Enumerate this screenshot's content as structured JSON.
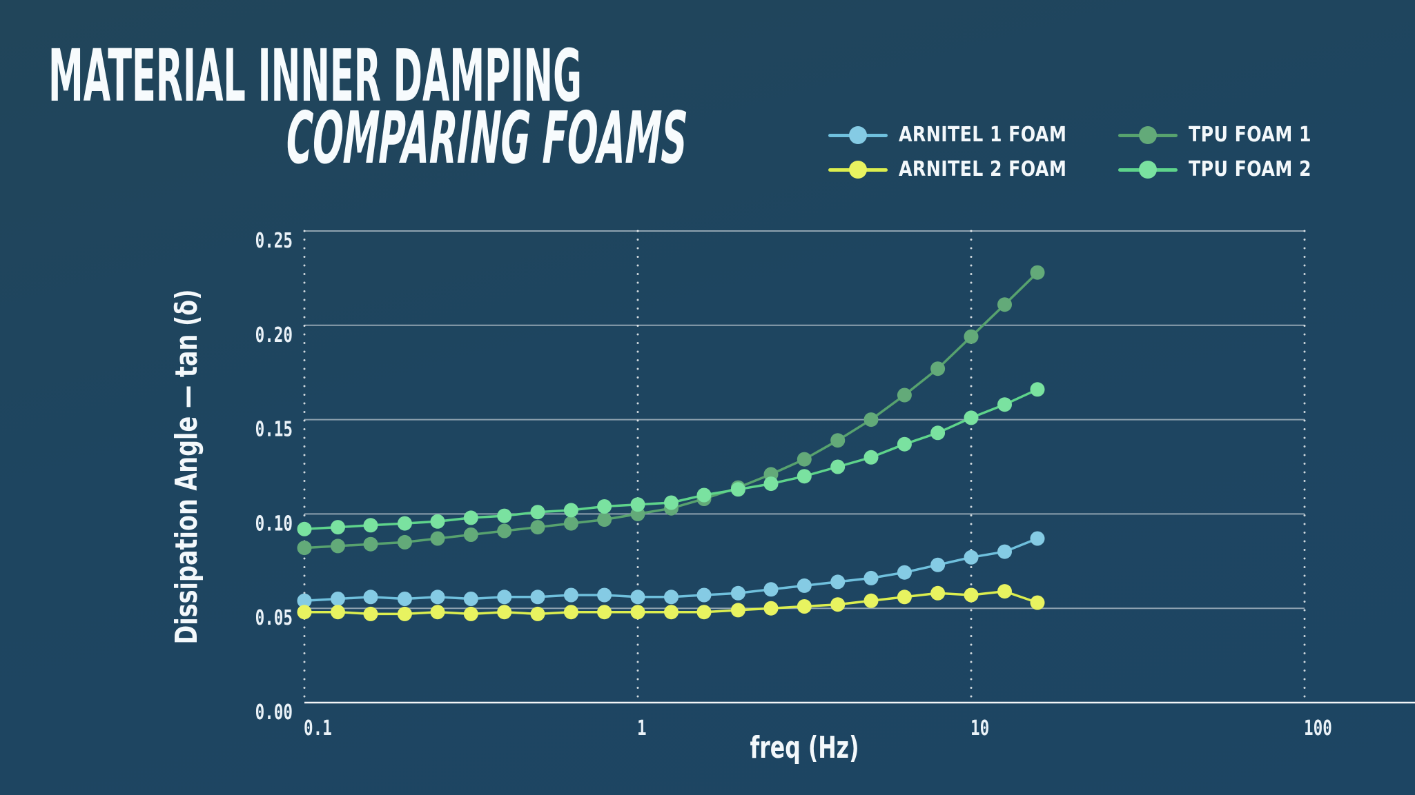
{
  "page": {
    "background": "#1d4563",
    "background_top": "#21455a"
  },
  "header": {
    "title": "MATERIAL INNER DAMPING",
    "subtitle": "COMPARING FOAMS",
    "text_color": "#f7fbfd"
  },
  "legend": {
    "position": "top-right",
    "items": [
      {
        "label": "ARNITEL 1 FOAM",
        "line_color": "#6fc0dd",
        "dot_color": "#85cbe4"
      },
      {
        "label": "ARNITEL 2 FOAM",
        "line_color": "#dcee4e",
        "dot_color": "#e8f360"
      },
      {
        "label": "TPU FOAM 1",
        "line_color": "#57a26e",
        "dot_color": "#63aa79"
      },
      {
        "label": "TPU FOAM 2",
        "line_color": "#5ed48b",
        "dot_color": "#7ae2a0"
      }
    ]
  },
  "chart_data": {
    "type": "line",
    "title": "MATERIAL INNER DAMPING",
    "subtitle": "COMPARING FOAMS",
    "xlabel": "freq (Hz)",
    "ylabel": "Dissipation Angle — tan (δ)",
    "x_scale": "log",
    "xlim": [
      0.1,
      100
    ],
    "ylim": [
      0,
      0.25
    ],
    "grid": {
      "horizontal": "solid",
      "vertical": "dotted"
    },
    "legend_position": "top-right",
    "xticks": [
      {
        "v": 0.1,
        "label": "0.1"
      },
      {
        "v": 1,
        "label": "1"
      },
      {
        "v": 10,
        "label": "10"
      },
      {
        "v": 100,
        "label": "100"
      }
    ],
    "yticks": [
      {
        "v": 0.0,
        "label": "0.00"
      },
      {
        "v": 0.05,
        "label": "0.05"
      },
      {
        "v": 0.1,
        "label": "0.10"
      },
      {
        "v": 0.15,
        "label": "0.15"
      },
      {
        "v": 0.2,
        "label": "0.20"
      },
      {
        "v": 0.25,
        "label": "0.25"
      }
    ],
    "x": [
      0.1,
      0.126,
      0.158,
      0.2,
      0.251,
      0.316,
      0.398,
      0.501,
      0.631,
      0.794,
      1.0,
      1.26,
      1.58,
      2.0,
      2.51,
      3.16,
      3.98,
      5.01,
      6.31,
      7.94,
      10.0,
      12.6,
      15.8
    ],
    "series": [
      {
        "name": "ARNITEL 1 FOAM",
        "line_color": "#6fc0dd",
        "dot_color": "#85cbe4",
        "values": [
          0.054,
          0.055,
          0.056,
          0.055,
          0.056,
          0.055,
          0.056,
          0.056,
          0.057,
          0.057,
          0.056,
          0.056,
          0.057,
          0.058,
          0.06,
          0.062,
          0.064,
          0.066,
          0.069,
          0.073,
          0.077,
          0.08,
          0.087
        ]
      },
      {
        "name": "ARNITEL 2 FOAM",
        "line_color": "#dcee4e",
        "dot_color": "#e8f360",
        "values": [
          0.048,
          0.048,
          0.047,
          0.047,
          0.048,
          0.047,
          0.048,
          0.047,
          0.048,
          0.048,
          0.048,
          0.048,
          0.048,
          0.049,
          0.05,
          0.051,
          0.052,
          0.054,
          0.056,
          0.058,
          0.057,
          0.059,
          0.053
        ]
      },
      {
        "name": "TPU FOAM 1",
        "line_color": "#57a26e",
        "dot_color": "#63aa79",
        "values": [
          0.082,
          0.083,
          0.084,
          0.085,
          0.087,
          0.089,
          0.091,
          0.093,
          0.095,
          0.097,
          0.1,
          0.103,
          0.108,
          0.114,
          0.121,
          0.129,
          0.139,
          0.15,
          0.163,
          0.177,
          0.194,
          0.211,
          0.228
        ]
      },
      {
        "name": "TPU FOAM 2",
        "line_color": "#5ed48b",
        "dot_color": "#7ae2a0",
        "values": [
          0.092,
          0.093,
          0.094,
          0.095,
          0.096,
          0.098,
          0.099,
          0.101,
          0.102,
          0.104,
          0.105,
          0.106,
          0.11,
          0.113,
          0.116,
          0.12,
          0.125,
          0.13,
          0.137,
          0.143,
          0.151,
          0.158,
          0.166
        ]
      }
    ],
    "style": {
      "grid_color": "#ffffff",
      "grid_opacity": 0.5,
      "axis_opacity": 0.95,
      "tick_color": "#eaf2f8",
      "axis_title_color": "#f3f8fb"
    }
  }
}
